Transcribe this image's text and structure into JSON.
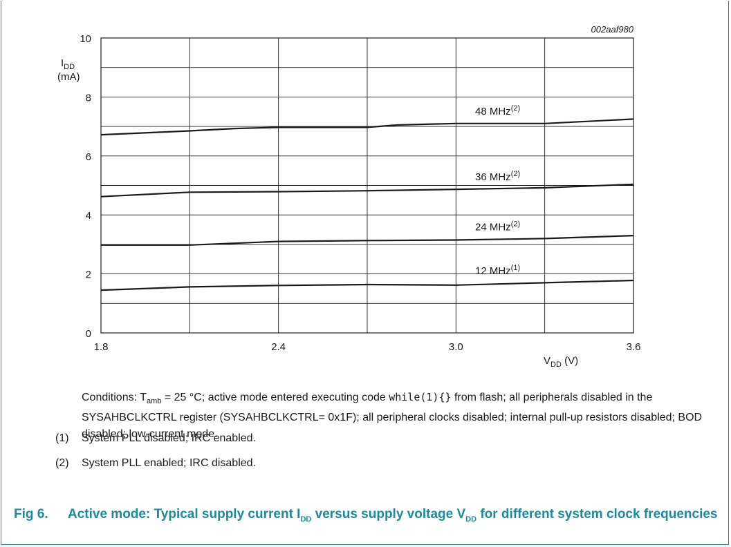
{
  "chart_data": {
    "type": "line",
    "figure_code": "002aaf980",
    "ylabel_main": "I",
    "ylabel_sub": "DD",
    "ylabel_unit": "(mA)",
    "xlabel_main": "V",
    "xlabel_sub": "DD",
    "xlabel_unit": "(V)",
    "xlim": [
      1.8,
      3.6
    ],
    "ylim": [
      0,
      10
    ],
    "xticks": [
      1.8,
      2.4,
      3.0,
      3.6
    ],
    "xtick_labels": [
      "1.8",
      "2.4",
      "3.0",
      "3.6"
    ],
    "yticks": [
      0,
      2,
      4,
      6,
      8,
      10
    ],
    "ytick_labels": [
      "0",
      "2",
      "4",
      "6",
      "8",
      "10"
    ],
    "grid": true,
    "series": [
      {
        "name": "48 MHz",
        "note": "(2)",
        "x": [
          1.8,
          2.1,
          2.25,
          2.4,
          2.7,
          2.8,
          3.0,
          3.3,
          3.6
        ],
        "y": [
          6.72,
          6.85,
          6.93,
          6.97,
          6.97,
          7.05,
          7.1,
          7.1,
          7.25
        ]
      },
      {
        "name": "36 MHz",
        "note": "(2)",
        "x": [
          1.8,
          2.1,
          2.4,
          2.7,
          3.0,
          3.3,
          3.6
        ],
        "y": [
          4.62,
          4.77,
          4.79,
          4.82,
          4.87,
          4.92,
          5.04
        ]
      },
      {
        "name": "24 MHz",
        "note": "(2)",
        "x": [
          1.8,
          2.1,
          2.4,
          2.7,
          3.0,
          3.3,
          3.6
        ],
        "y": [
          2.98,
          2.98,
          3.1,
          3.13,
          3.15,
          3.2,
          3.3
        ]
      },
      {
        "name": "12 MHz",
        "note": "(1)",
        "x": [
          1.8,
          2.1,
          2.4,
          2.7,
          3.0,
          3.3,
          3.6
        ],
        "y": [
          1.45,
          1.56,
          1.61,
          1.64,
          1.62,
          1.7,
          1.78
        ]
      }
    ]
  },
  "conditions": {
    "part1": "Conditions: T",
    "tamb_sub": "amb",
    "part2": " = 25 °C; active mode entered executing code ",
    "code": "while(1){}",
    "part3": " from flash; all peripherals disabled in the SYSAHBCLKCTRL register (SYSAHBCLKCTRL= 0x1F); all peripheral clocks disabled; internal pull-up resistors disabled; BOD disabled; low-current mode."
  },
  "footnotes": [
    {
      "num": "(1)",
      "text": "System PLL disabled; IRC enabled."
    },
    {
      "num": "(2)",
      "text": "System PLL enabled; IRC disabled."
    }
  ],
  "caption": {
    "fig": "Fig 6.",
    "t1": "Active mode: Typical supply current I",
    "s1": "DD",
    "t2": " versus supply voltage V",
    "s2": "DD",
    "t3": " for different system clock frequencies"
  }
}
